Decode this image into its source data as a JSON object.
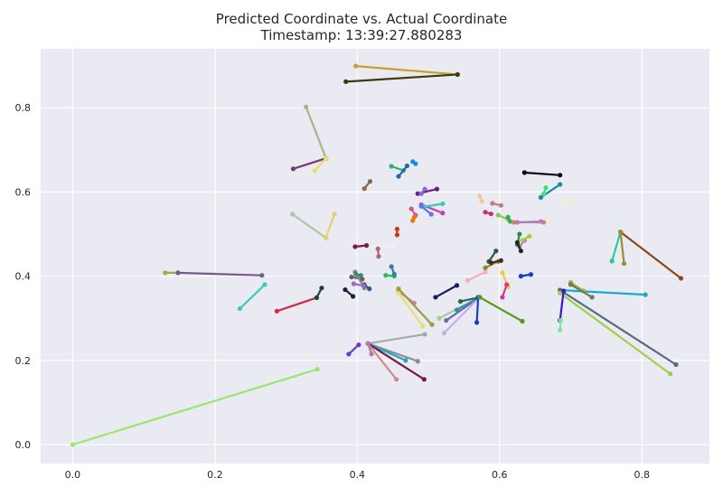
{
  "chart_data": {
    "type": "line",
    "title": "Predicted Coordinate vs. Actual Coordinate",
    "subtitle": "Timestamp: 13:39:27.880283",
    "xlabel": "",
    "ylabel": "",
    "xlim": [
      -0.045,
      0.895
    ],
    "ylim": [
      -0.045,
      0.94
    ],
    "xticks": [
      "0.0",
      "0.2",
      "0.4",
      "0.6",
      "0.8"
    ],
    "yticks": [
      "0.0",
      "0.2",
      "0.4",
      "0.6",
      "0.8"
    ],
    "grid": true,
    "background": "#EAEAF2",
    "gridColor": "#ffffff",
    "segments": [
      {
        "p": [
          0.0,
          0.0
        ],
        "a": [
          0.344,
          0.179
        ],
        "c": "#9AE66E"
      },
      {
        "p": [
          0.398,
          0.899
        ],
        "a": [
          0.541,
          0.879
        ],
        "c": "#C8A02A"
      },
      {
        "p": [
          0.384,
          0.862
        ],
        "a": [
          0.541,
          0.879
        ],
        "c": "#3A3A0A"
      },
      {
        "p": [
          0.328,
          0.802
        ],
        "a": [
          0.356,
          0.68
        ],
        "c": "#A8B58A"
      },
      {
        "p": [
          0.31,
          0.655
        ],
        "a": [
          0.356,
          0.68
        ],
        "c": "#7A3A6E"
      },
      {
        "p": [
          0.34,
          0.65
        ],
        "a": [
          0.356,
          0.68
        ],
        "c": "#E6E070"
      },
      {
        "p": [
          0.41,
          0.608
        ],
        "a": [
          0.418,
          0.625
        ],
        "c": "#8A6A4A"
      },
      {
        "p": [
          0.309,
          0.547
        ],
        "a": [
          0.356,
          0.491
        ],
        "c": "#A8C8A8"
      },
      {
        "p": [
          0.368,
          0.548
        ],
        "a": [
          0.356,
          0.491
        ],
        "c": "#E6D070"
      },
      {
        "p": [
          0.13,
          0.408
        ],
        "a": [
          0.148,
          0.408
        ],
        "c": "#98B040"
      },
      {
        "p": [
          0.148,
          0.408
        ],
        "a": [
          0.266,
          0.402
        ],
        "c": "#7A5A8A"
      },
      {
        "p": [
          0.235,
          0.323
        ],
        "a": [
          0.27,
          0.38
        ],
        "c": "#3ACAC0"
      },
      {
        "p": [
          0.287,
          0.317
        ],
        "a": [
          0.343,
          0.349
        ],
        "c": "#D02A4A"
      },
      {
        "p": [
          0.343,
          0.349
        ],
        "a": [
          0.35,
          0.372
        ],
        "c": "#1A4A2A"
      },
      {
        "p": [
          0.448,
          0.661
        ],
        "a": [
          0.465,
          0.651
        ],
        "c": "#3AAA7A"
      },
      {
        "p": [
          0.458,
          0.637
        ],
        "a": [
          0.47,
          0.662
        ],
        "c": "#1A6AAA"
      },
      {
        "p": [
          0.478,
          0.672
        ],
        "a": [
          0.482,
          0.667
        ],
        "c": "#1A8AE6"
      },
      {
        "p": [
          0.485,
          0.596
        ],
        "a": [
          0.512,
          0.607
        ],
        "c": "#6A1A8A"
      },
      {
        "p": [
          0.495,
          0.607
        ],
        "a": [
          0.49,
          0.596
        ],
        "c": "#8A6ACA"
      },
      {
        "p": [
          0.476,
          0.56
        ],
        "a": [
          0.482,
          0.545
        ],
        "c": "#C85A8A"
      },
      {
        "p": [
          0.49,
          0.57
        ],
        "a": [
          0.52,
          0.55
        ],
        "c": "#D03AB0"
      },
      {
        "p": [
          0.494,
          0.565
        ],
        "a": [
          0.52,
          0.572
        ],
        "c": "#3ACAB0"
      },
      {
        "p": [
          0.49,
          0.566
        ],
        "a": [
          0.504,
          0.547
        ],
        "c": "#5A7AE6"
      },
      {
        "p": [
          0.48,
          0.54
        ],
        "a": [
          0.478,
          0.532
        ],
        "c": "#E67A1A"
      },
      {
        "p": [
          0.456,
          0.512
        ],
        "a": [
          0.456,
          0.498
        ],
        "c": "#C83A1A"
      },
      {
        "p": [
          0.397,
          0.47
        ],
        "a": [
          0.413,
          0.473
        ],
        "c": "#7A1A4A"
      },
      {
        "p": [
          0.422,
          0.469
        ],
        "a": [
          0.45,
          0.47
        ],
        "c": "#F0F0F0"
      },
      {
        "p": [
          0.429,
          0.465
        ],
        "a": [
          0.43,
          0.447
        ],
        "c": "#A86A7A"
      },
      {
        "p": [
          0.392,
          0.398
        ],
        "a": [
          0.407,
          0.393
        ],
        "c": "#6A5A5A"
      },
      {
        "p": [
          0.397,
          0.41
        ],
        "a": [
          0.41,
          0.372
        ],
        "c": "#7A8A9A"
      },
      {
        "p": [
          0.398,
          0.405
        ],
        "a": [
          0.405,
          0.402
        ],
        "c": "#3A8A6A"
      },
      {
        "p": [
          0.41,
          0.38
        ],
        "a": [
          0.417,
          0.37
        ],
        "c": "#2A5A8A"
      },
      {
        "p": [
          0.395,
          0.382
        ],
        "a": [
          0.409,
          0.377
        ],
        "c": "#9A6ACA"
      },
      {
        "p": [
          0.383,
          0.368
        ],
        "a": [
          0.394,
          0.352
        ],
        "c": "#2A1A3A"
      },
      {
        "p": [
          0.44,
          0.402
        ],
        "a": [
          0.452,
          0.4
        ],
        "c": "#2ABA5A"
      },
      {
        "p": [
          0.448,
          0.423
        ],
        "a": [
          0.452,
          0.405
        ],
        "c": "#3A7AAA"
      },
      {
        "p": [
          0.458,
          0.364
        ],
        "a": [
          0.48,
          0.336
        ],
        "c": "#D07AB0"
      },
      {
        "p": [
          0.458,
          0.36
        ],
        "a": [
          0.492,
          0.282
        ],
        "c": "#E6E070"
      },
      {
        "p": [
          0.458,
          0.37
        ],
        "a": [
          0.505,
          0.285
        ],
        "c": "#98A03A"
      },
      {
        "p": [
          0.51,
          0.35
        ],
        "a": [
          0.54,
          0.378
        ],
        "c": "#1A1A6A"
      },
      {
        "p": [
          0.555,
          0.39
        ],
        "a": [
          0.58,
          0.41
        ],
        "c": "#F0B0C0"
      },
      {
        "p": [
          0.515,
          0.3
        ],
        "a": [
          0.572,
          0.35
        ],
        "c": "#A0D0A0"
      },
      {
        "p": [
          0.525,
          0.295
        ],
        "a": [
          0.572,
          0.35
        ],
        "c": "#6A6AB0"
      },
      {
        "p": [
          0.522,
          0.265
        ],
        "a": [
          0.572,
          0.35
        ],
        "c": "#C8B0E6"
      },
      {
        "p": [
          0.54,
          0.32
        ],
        "a": [
          0.572,
          0.35
        ],
        "c": "#3A8AAA"
      },
      {
        "p": [
          0.545,
          0.34
        ],
        "a": [
          0.572,
          0.35
        ],
        "c": "#2A6A4A"
      },
      {
        "p": [
          0.568,
          0.29
        ],
        "a": [
          0.57,
          0.35
        ],
        "c": "#1A3AC8"
      },
      {
        "p": [
          0.572,
          0.35
        ],
        "a": [
          0.632,
          0.293
        ],
        "c": "#5A9A1A"
      },
      {
        "p": [
          0.585,
          0.435
        ],
        "a": [
          0.595,
          0.46
        ],
        "c": "#2A5A3A"
      },
      {
        "p": [
          0.58,
          0.42
        ],
        "a": [
          0.598,
          0.435
        ],
        "c": "#8A8A1A"
      },
      {
        "p": [
          0.588,
          0.432
        ],
        "a": [
          0.602,
          0.437
        ],
        "c": "#4A2A2A"
      },
      {
        "p": [
          0.572,
          0.59
        ],
        "a": [
          0.575,
          0.578
        ],
        "c": "#F0C8A0"
      },
      {
        "p": [
          0.59,
          0.573
        ],
        "a": [
          0.602,
          0.568
        ],
        "c": "#C87A8A"
      },
      {
        "p": [
          0.58,
          0.552
        ],
        "a": [
          0.588,
          0.548
        ],
        "c": "#D02A6A"
      },
      {
        "p": [
          0.598,
          0.545
        ],
        "a": [
          0.612,
          0.535
        ],
        "c": "#7AD04A"
      },
      {
        "p": [
          0.612,
          0.54
        ],
        "a": [
          0.615,
          0.53
        ],
        "c": "#3AAA5A"
      },
      {
        "p": [
          0.62,
          0.528
        ],
        "a": [
          0.662,
          0.528
        ],
        "c": "#D08A3A"
      },
      {
        "p": [
          0.625,
          0.528
        ],
        "a": [
          0.658,
          0.53
        ],
        "c": "#B07AD0"
      },
      {
        "p": [
          0.628,
          0.47
        ],
        "a": [
          0.635,
          0.485
        ],
        "c": "#CA6AD0"
      },
      {
        "p": [
          0.632,
          0.485
        ],
        "a": [
          0.642,
          0.495
        ],
        "c": "#A0D03A"
      },
      {
        "p": [
          0.625,
          0.475
        ],
        "a": [
          0.628,
          0.5
        ],
        "c": "#2A8A5A"
      },
      {
        "p": [
          0.63,
          0.46
        ],
        "a": [
          0.625,
          0.48
        ],
        "c": "#1A2A1A"
      },
      {
        "p": [
          0.604,
          0.408
        ],
        "a": [
          0.612,
          0.375
        ],
        "c": "#E6D03A"
      },
      {
        "p": [
          0.604,
          0.35
        ],
        "a": [
          0.61,
          0.38
        ],
        "c": "#D03A8A"
      },
      {
        "p": [
          0.63,
          0.4
        ],
        "a": [
          0.644,
          0.404
        ],
        "c": "#1A3AC8"
      },
      {
        "p": [
          0.635,
          0.646
        ],
        "a": [
          0.685,
          0.64
        ],
        "c": "#0A0A1A"
      },
      {
        "p": [
          0.658,
          0.587
        ],
        "a": [
          0.685,
          0.618
        ],
        "c": "#1A8AAA"
      },
      {
        "p": [
          0.662,
          0.595
        ],
        "a": [
          0.665,
          0.61
        ],
        "c": "#3AE66A"
      },
      {
        "p": [
          0.69,
          0.577
        ],
        "a": [
          0.7,
          0.575
        ],
        "c": "#F0F0D0"
      },
      {
        "p": [
          0.685,
          0.367
        ],
        "a": [
          0.805,
          0.356
        ],
        "c": "#1AAAC8"
      },
      {
        "p": [
          0.685,
          0.367
        ],
        "a": [
          0.848,
          0.19
        ],
        "c": "#5A6A7A"
      },
      {
        "p": [
          0.685,
          0.36
        ],
        "a": [
          0.84,
          0.168
        ],
        "c": "#A0D04A"
      },
      {
        "p": [
          0.685,
          0.295
        ],
        "a": [
          0.69,
          0.365
        ],
        "c": "#3A1AC8"
      },
      {
        "p": [
          0.685,
          0.272
        ],
        "a": [
          0.686,
          0.295
        ],
        "c": "#7AE6A0"
      },
      {
        "p": [
          0.7,
          0.385
        ],
        "a": [
          0.718,
          0.365
        ],
        "c": "#A8B03A"
      },
      {
        "p": [
          0.7,
          0.38
        ],
        "a": [
          0.73,
          0.35
        ],
        "c": "#6A7A5A"
      },
      {
        "p": [
          0.77,
          0.505
        ],
        "a": [
          0.855,
          0.395
        ],
        "c": "#8A4A1A"
      },
      {
        "p": [
          0.758,
          0.436
        ],
        "a": [
          0.77,
          0.505
        ],
        "c": "#2ACAA0"
      },
      {
        "p": [
          0.77,
          0.505
        ],
        "a": [
          0.775,
          0.43
        ],
        "c": "#A08A3A"
      },
      {
        "p": [
          0.415,
          0.24
        ],
        "a": [
          0.495,
          0.262
        ],
        "c": "#A8A8A8"
      },
      {
        "p": [
          0.415,
          0.24
        ],
        "a": [
          0.485,
          0.198
        ],
        "c": "#8A8A9A"
      },
      {
        "p": [
          0.415,
          0.24
        ],
        "a": [
          0.468,
          0.2
        ],
        "c": "#1AAAC8"
      },
      {
        "p": [
          0.415,
          0.24
        ],
        "a": [
          0.494,
          0.155
        ],
        "c": "#7A1A3A"
      },
      {
        "p": [
          0.415,
          0.24
        ],
        "a": [
          0.455,
          0.155
        ],
        "c": "#D08A8A"
      },
      {
        "p": [
          0.415,
          0.24
        ],
        "a": [
          0.42,
          0.215
        ],
        "c": "#B07AB0"
      },
      {
        "p": [
          0.388,
          0.215
        ],
        "a": [
          0.402,
          0.237
        ],
        "c": "#6A3AC8"
      }
    ]
  }
}
